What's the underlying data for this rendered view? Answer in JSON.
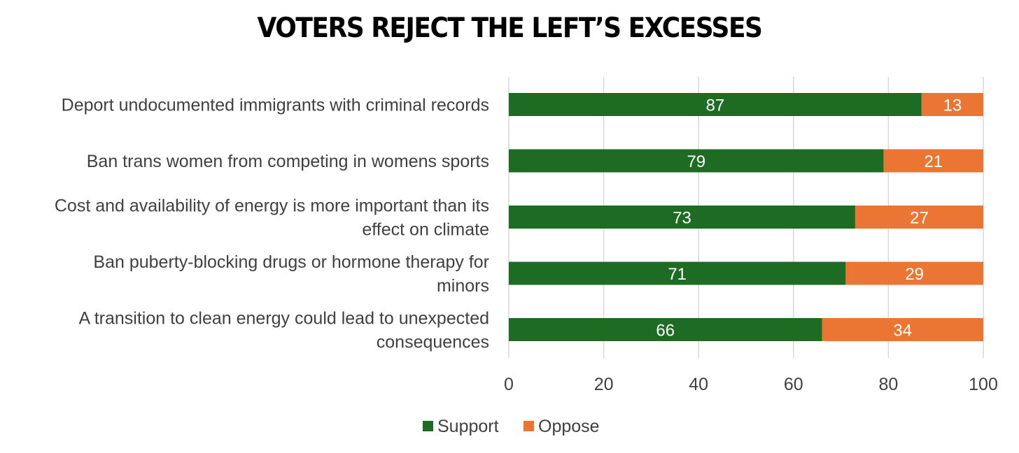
{
  "chart_data": {
    "type": "bar",
    "orientation": "horizontal",
    "stacked": true,
    "title": "VOTERS REJECT THE LEFT’S EXCESSES",
    "categories": [
      [
        "Deport undocumented immigrants with criminal records"
      ],
      [
        "Ban trans women from competing in womens sports"
      ],
      [
        "Cost and availability of energy is more important than its",
        "effect on climate"
      ],
      [
        "Ban puberty-blocking drugs or hormone therapy for",
        "minors"
      ],
      [
        "A transition to clean energy could lead to unexpected",
        "consequences"
      ]
    ],
    "series": [
      {
        "name": "Support",
        "color": "#1e6b24",
        "values": [
          87,
          79,
          73,
          71,
          66
        ]
      },
      {
        "name": "Oppose",
        "color": "#eb7634",
        "values": [
          13,
          21,
          27,
          29,
          34
        ]
      }
    ],
    "xlim": [
      0,
      100
    ],
    "xticks": [
      0,
      20,
      40,
      60,
      80,
      100
    ],
    "grid": "vertical",
    "legend": "bottom",
    "data_labels": true
  }
}
